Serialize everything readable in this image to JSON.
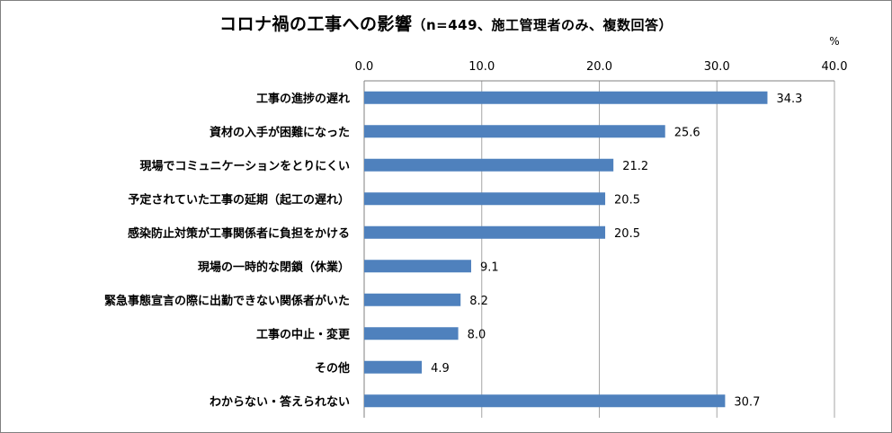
{
  "chart_data": {
    "type": "bar",
    "orientation": "horizontal",
    "title": "コロナ禍の工事への影響",
    "subtitle": "（n=449、施工管理者のみ、複数回答）",
    "unit": "%",
    "xlim": [
      0,
      40
    ],
    "ticks": [
      "0.0",
      "10.0",
      "20.0",
      "30.0",
      "40.0"
    ],
    "tick_values": [
      0,
      10,
      20,
      30,
      40
    ],
    "grid": true,
    "bar_color": "#4f81bd",
    "categories": [
      "工事の進捗の遅れ",
      "資材の入手が困難になった",
      "現場でコミュニケーションをとりにくい",
      "予定されていた工事の延期（起工の遅れ）",
      "感染防止対策が工事関係者に負担をかける",
      "現場の一時的な閉鎖（休業）",
      "緊急事態宣言の際に出勤できない関係者がいた",
      "工事の中止・変更",
      "その他",
      "わからない・答えられない"
    ],
    "values": [
      34.3,
      25.6,
      21.2,
      20.5,
      20.5,
      9.1,
      8.2,
      8.0,
      4.9,
      30.7
    ],
    "value_labels": [
      "34.3",
      "25.6",
      "21.2",
      "20.5",
      "20.5",
      "9.1",
      "8.2",
      "8.0",
      "4.9",
      "30.7"
    ]
  }
}
